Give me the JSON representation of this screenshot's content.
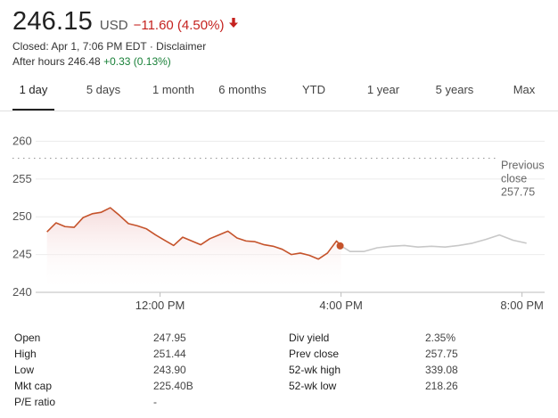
{
  "quote": {
    "price": "246.15",
    "currency": "USD",
    "change": "−11.60 (4.50%)",
    "closed_info": "Closed: Apr 1, 7:06 PM EDT · Disclaimer",
    "after_hours_label": "After hours 246.48",
    "after_hours_change": "+0.33 (0.13%)",
    "colors": {
      "negative": "#c5221f",
      "positive": "#188038",
      "line": "#c5532b",
      "after_hours_line": "#c8c8c8"
    }
  },
  "tabs": [
    {
      "label": "1 day",
      "active": true
    },
    {
      "label": "5 days"
    },
    {
      "label": "1 month"
    },
    {
      "label": "6 months"
    },
    {
      "label": "YTD"
    },
    {
      "label": "1 year"
    },
    {
      "label": "5 years"
    },
    {
      "label": "Max"
    }
  ],
  "chart_data": {
    "type": "line",
    "ylim": [
      240,
      261
    ],
    "yticks": [
      260,
      255,
      250,
      245,
      240
    ],
    "xlim": [
      9.25,
      20.5
    ],
    "xticks": [
      12,
      16,
      20
    ],
    "xtick_labels": [
      "12:00 PM",
      "4:00 PM",
      "8:00 PM"
    ],
    "previous_close": 257.75,
    "previous_close_label": [
      "Previous",
      "close",
      "257.75"
    ],
    "close_marker": {
      "x": 15.98,
      "y": 246.15
    },
    "series": [
      {
        "session": "regular",
        "x": [
          9.5,
          9.7,
          9.9,
          10.1,
          10.3,
          10.5,
          10.7,
          10.9,
          11.1,
          11.3,
          11.5,
          11.7,
          11.9,
          12.1,
          12.3,
          12.5,
          12.7,
          12.9,
          13.1,
          13.3,
          13.5,
          13.7,
          13.9,
          14.1,
          14.3,
          14.5,
          14.7,
          14.9,
          15.1,
          15.3,
          15.5,
          15.7,
          15.9,
          16.0
        ],
        "y": [
          248.0,
          249.2,
          248.7,
          248.6,
          249.9,
          250.4,
          250.6,
          251.2,
          250.2,
          249.1,
          248.8,
          248.4,
          247.6,
          246.9,
          246.2,
          247.3,
          246.8,
          246.3,
          247.1,
          247.6,
          248.1,
          247.2,
          246.8,
          246.7,
          246.3,
          246.1,
          245.7,
          245.0,
          245.2,
          244.9,
          244.4,
          245.2,
          246.8,
          246.15
        ]
      },
      {
        "session": "after-hours",
        "x": [
          16.0,
          16.2,
          16.5,
          16.8,
          17.1,
          17.4,
          17.7,
          18.0,
          18.3,
          18.6,
          18.9,
          19.2,
          19.5,
          19.8,
          20.1
        ],
        "y": [
          246.15,
          245.4,
          245.4,
          245.9,
          246.1,
          246.2,
          246.0,
          246.1,
          246.0,
          246.2,
          246.5,
          247.0,
          247.6,
          246.9,
          246.5
        ]
      }
    ]
  },
  "stats": {
    "rows": [
      {
        "l1": "Open",
        "v1": "247.95",
        "l2": "Div yield",
        "v2": "2.35%"
      },
      {
        "l1": "High",
        "v1": "251.44",
        "l2": "Prev close",
        "v2": "257.75"
      },
      {
        "l1": "Low",
        "v1": "243.90",
        "l2": "52-wk high",
        "v2": "339.08"
      },
      {
        "l1": "Mkt cap",
        "v1": "225.40B",
        "l2": "52-wk low",
        "v2": "218.26"
      },
      {
        "l1": "P/E ratio",
        "v1": "-",
        "l2": "",
        "v2": ""
      }
    ]
  }
}
